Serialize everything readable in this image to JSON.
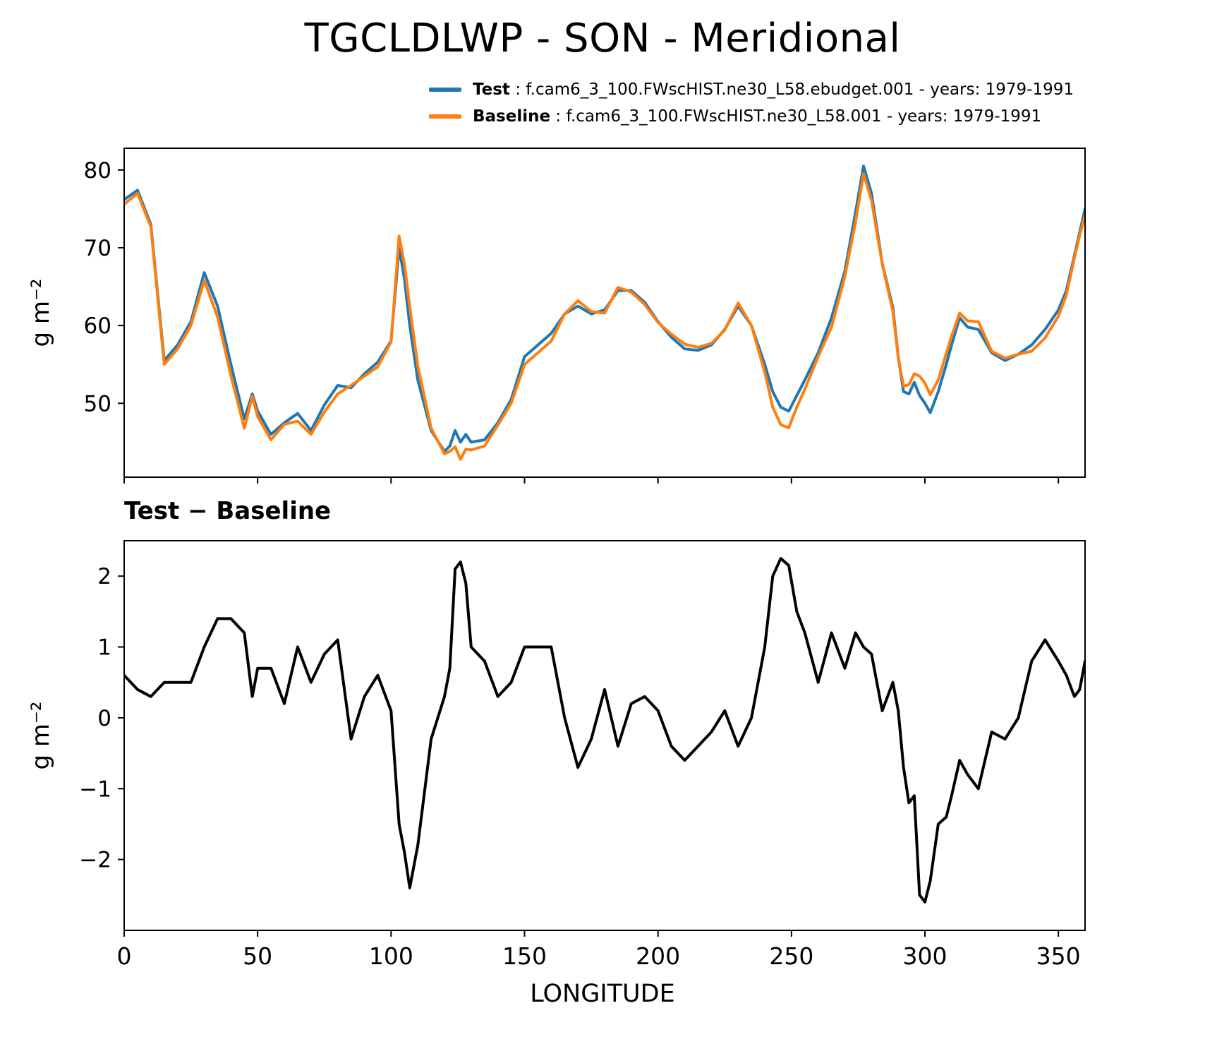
{
  "chart_data": [
    {
      "type": "line",
      "title": "TGCLDLWP - SON - Meridional",
      "ylabel": "g m⁻²",
      "xlabel": "",
      "xlim": [
        0,
        360
      ],
      "ylim": [
        40.5,
        82.8
      ],
      "yticks": [
        50,
        60,
        70,
        80
      ],
      "xticks": [
        0,
        50,
        100,
        150,
        200,
        250,
        300,
        350
      ],
      "legend_position": "top-right-above-axes",
      "grid": false,
      "x": [
        0,
        5,
        10,
        15,
        20,
        25,
        30,
        35,
        40,
        45,
        48,
        50,
        55,
        60,
        65,
        70,
        75,
        80,
        85,
        90,
        95,
        100,
        103,
        105,
        107,
        110,
        115,
        120,
        122,
        124,
        126,
        128,
        130,
        135,
        140,
        145,
        150,
        155,
        160,
        165,
        170,
        175,
        180,
        185,
        190,
        195,
        200,
        205,
        210,
        215,
        220,
        225,
        230,
        235,
        240,
        243,
        246,
        249,
        252,
        255,
        260,
        265,
        270,
        274,
        277,
        280,
        284,
        288,
        290,
        292,
        294,
        296,
        298,
        300,
        302,
        305,
        308,
        310,
        313,
        316,
        320,
        325,
        330,
        335,
        340,
        345,
        350,
        353,
        356,
        358,
        360
      ],
      "series": [
        {
          "name": "Test",
          "color": "#1f77b4",
          "legend_rest": " : f.cam6_3_100.FWscHIST.ne30_L58.ebudget.001 - years: 1979-1991",
          "values": [
            76.2,
            77.4,
            73.0,
            55.5,
            57.5,
            60.5,
            66.8,
            62.5,
            55.0,
            48.0,
            51.2,
            49.0,
            46.0,
            47.5,
            48.7,
            46.5,
            49.8,
            52.3,
            52.0,
            53.8,
            55.3,
            58.0,
            70.0,
            66.0,
            60.0,
            53.0,
            46.5,
            43.8,
            44.5,
            46.5,
            45.0,
            46.0,
            45.0,
            45.3,
            47.5,
            50.5,
            56.0,
            57.5,
            59.0,
            61.5,
            62.5,
            61.5,
            62.0,
            64.5,
            64.5,
            63.0,
            60.5,
            58.5,
            57.0,
            56.8,
            57.5,
            59.5,
            62.5,
            60.0,
            55.0,
            51.5,
            49.5,
            49.0,
            51.0,
            53.0,
            56.5,
            61.0,
            67.0,
            74.5,
            80.5,
            77.0,
            68.0,
            62.3,
            56.0,
            51.5,
            51.2,
            52.7,
            51.0,
            50.0,
            48.8,
            51.5,
            55.0,
            57.5,
            61.0,
            59.8,
            59.5,
            56.5,
            55.5,
            56.3,
            57.5,
            59.5,
            62.0,
            64.5,
            69.0,
            72.0,
            75.0
          ]
        },
        {
          "name": "Baseline",
          "color": "#ff7f0e",
          "legend_rest": " : f.cam6_3_100.FWscHIST.ne30_L58.001 - years: 1979-1991",
          "values": [
            75.6,
            77.0,
            72.7,
            55.0,
            57.0,
            60.0,
            65.8,
            61.1,
            53.6,
            46.8,
            50.9,
            48.3,
            45.3,
            47.3,
            47.7,
            46.0,
            48.9,
            51.2,
            52.3,
            53.5,
            54.7,
            57.9,
            71.5,
            67.9,
            62.4,
            54.8,
            46.8,
            43.5,
            43.8,
            44.4,
            42.8,
            44.1,
            44.0,
            44.5,
            47.2,
            50.0,
            55.0,
            56.5,
            58.0,
            61.5,
            63.2,
            61.8,
            61.6,
            64.9,
            64.3,
            62.7,
            60.4,
            58.9,
            57.6,
            57.2,
            57.7,
            59.4,
            62.9,
            60.0,
            54.0,
            49.5,
            47.25,
            46.85,
            49.5,
            51.8,
            56.0,
            59.8,
            66.3,
            73.3,
            79.5,
            76.1,
            67.9,
            61.8,
            55.9,
            52.2,
            52.4,
            53.8,
            53.5,
            52.6,
            51.1,
            53.0,
            56.4,
            58.6,
            61.6,
            60.6,
            60.5,
            56.7,
            55.8,
            56.3,
            56.7,
            58.4,
            61.2,
            63.9,
            68.7,
            71.6,
            74.2
          ]
        }
      ]
    },
    {
      "type": "line",
      "title": "Test − Baseline",
      "ylabel": "g m⁻²",
      "xlabel": "LONGITUDE",
      "xlim": [
        0,
        360
      ],
      "ylim": [
        -3.0,
        2.5
      ],
      "yticks": [
        -2,
        -1,
        0,
        1,
        2
      ],
      "xticks": [
        0,
        50,
        100,
        150,
        200,
        250,
        300,
        350
      ],
      "grid": false,
      "x": [
        0,
        5,
        10,
        15,
        20,
        25,
        30,
        35,
        40,
        45,
        48,
        50,
        55,
        60,
        65,
        70,
        75,
        80,
        85,
        90,
        95,
        100,
        103,
        105,
        107,
        110,
        115,
        120,
        122,
        124,
        126,
        128,
        130,
        135,
        140,
        145,
        150,
        155,
        160,
        165,
        170,
        175,
        180,
        185,
        190,
        195,
        200,
        205,
        210,
        215,
        220,
        225,
        230,
        235,
        240,
        243,
        246,
        249,
        252,
        255,
        260,
        265,
        270,
        274,
        277,
        280,
        284,
        288,
        290,
        292,
        294,
        296,
        298,
        300,
        302,
        305,
        308,
        310,
        313,
        316,
        320,
        325,
        330,
        335,
        340,
        345,
        350,
        353,
        356,
        358,
        360
      ],
      "series": [
        {
          "name": "Test minus Baseline",
          "color": "#000000",
          "legend_rest": "",
          "values": [
            0.6,
            0.4,
            0.3,
            0.5,
            0.5,
            0.5,
            1.0,
            1.4,
            1.4,
            1.2,
            0.3,
            0.7,
            0.7,
            0.2,
            1.0,
            0.5,
            0.9,
            1.1,
            -0.3,
            0.3,
            0.6,
            0.1,
            -1.5,
            -1.9,
            -2.4,
            -1.8,
            -0.3,
            0.3,
            0.7,
            2.1,
            2.2,
            1.9,
            1.0,
            0.8,
            0.3,
            0.5,
            1.0,
            1.0,
            1.0,
            0.0,
            -0.7,
            -0.3,
            0.4,
            -0.4,
            0.2,
            0.3,
            0.1,
            -0.4,
            -0.6,
            -0.4,
            -0.2,
            0.1,
            -0.4,
            0.0,
            1.0,
            2.0,
            2.25,
            2.15,
            1.5,
            1.2,
            0.5,
            1.2,
            0.7,
            1.2,
            1.0,
            0.9,
            0.1,
            0.5,
            0.1,
            -0.7,
            -1.2,
            -1.1,
            -2.5,
            -2.6,
            -2.3,
            -1.5,
            -1.4,
            -1.1,
            -0.6,
            -0.8,
            -1.0,
            -0.2,
            -0.3,
            0.0,
            0.8,
            1.1,
            0.8,
            0.6,
            0.3,
            0.4,
            0.8
          ]
        }
      ]
    }
  ]
}
